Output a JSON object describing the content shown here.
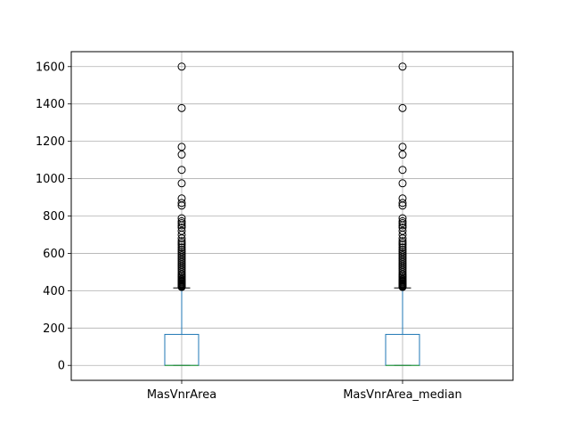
{
  "chart_data": {
    "type": "box",
    "title": "",
    "xlabel": "",
    "ylabel": "",
    "ylim": [
      -80,
      1680
    ],
    "yticks": [
      0,
      200,
      400,
      600,
      800,
      1000,
      1200,
      1400,
      1600
    ],
    "grid": true,
    "categories": [
      "MasVnrArea",
      "MasVnrArea_median"
    ],
    "series": [
      {
        "label": "MasVnrArea",
        "whisker_low": 0,
        "q1": 0,
        "median": 0,
        "q3": 166,
        "whisker_high": 415,
        "outliers": [
          420,
          424,
          428,
          432,
          436,
          440,
          445,
          450,
          455,
          460,
          468,
          475,
          482,
          490,
          500,
          510,
          520,
          530,
          540,
          550,
          560,
          570,
          580,
          590,
          600,
          610,
          620,
          632,
          645,
          655,
          665,
          680,
          700,
          720,
          738,
          750,
          762,
          772,
          788,
          856,
          870,
          894,
          975,
          1047,
          1129,
          1170,
          1378,
          1600
        ]
      },
      {
        "label": "MasVnrArea_median",
        "whisker_low": 0,
        "q1": 0,
        "median": 0,
        "q3": 166,
        "whisker_high": 415,
        "outliers": [
          420,
          424,
          428,
          432,
          436,
          440,
          445,
          450,
          455,
          460,
          468,
          475,
          482,
          490,
          500,
          510,
          520,
          530,
          540,
          550,
          560,
          570,
          580,
          590,
          600,
          610,
          620,
          632,
          645,
          655,
          665,
          680,
          700,
          720,
          738,
          750,
          762,
          772,
          788,
          856,
          870,
          894,
          975,
          1047,
          1129,
          1170,
          1378,
          1600
        ]
      }
    ],
    "colors": {
      "box": "#1f77b4",
      "median": "#2ca02c",
      "whisker": "#1f77b4",
      "cap": "#000000",
      "flier": "#000000",
      "grid": "#b0b0b0"
    }
  }
}
